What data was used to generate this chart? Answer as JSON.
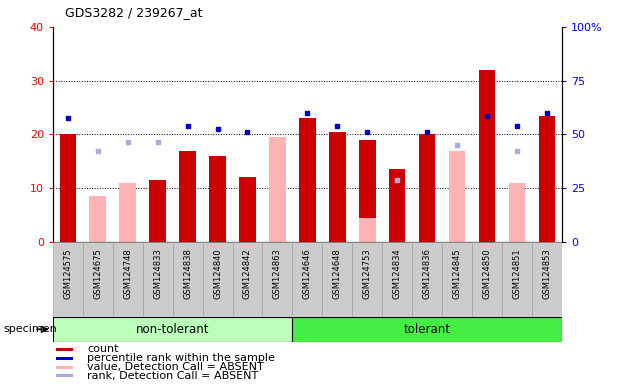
{
  "title": "GDS3282 / 239267_at",
  "samples": [
    "GSM124575",
    "GSM124675",
    "GSM124748",
    "GSM124833",
    "GSM124838",
    "GSM124840",
    "GSM124842",
    "GSM124863",
    "GSM124646",
    "GSM124648",
    "GSM124753",
    "GSM124834",
    "GSM124836",
    "GSM124845",
    "GSM124850",
    "GSM124851",
    "GSM124853"
  ],
  "n_nontol": 8,
  "n_tol": 9,
  "red_count": [
    20,
    0,
    0,
    11.5,
    17,
    16,
    12,
    0,
    23,
    20.5,
    19,
    13.5,
    20,
    0,
    32,
    0,
    23.5
  ],
  "pink_value_absent": [
    0,
    8.5,
    11,
    0,
    0,
    0,
    0,
    19.5,
    0,
    0,
    4.5,
    0,
    0,
    17,
    0,
    11,
    0
  ],
  "blue_rank": [
    23,
    0,
    0,
    0,
    21.5,
    21,
    20.5,
    0,
    24,
    21.5,
    20.5,
    0,
    20.5,
    0,
    23.5,
    21.5,
    24
  ],
  "lightblue_rank_absent": [
    0,
    17,
    18.5,
    18.5,
    0,
    0,
    0,
    0,
    0,
    0,
    0,
    11.5,
    0,
    18,
    0,
    17,
    0
  ],
  "ylim_left": [
    0,
    40
  ],
  "ylim_right": [
    0,
    100
  ],
  "yticks_left": [
    0,
    10,
    20,
    30,
    40
  ],
  "yticks_right": [
    0,
    25,
    50,
    75,
    100
  ],
  "ytick_right_labels": [
    "0",
    "25",
    "50",
    "75",
    "100%"
  ],
  "color_red": "#cc0000",
  "color_pink": "#ffb3b3",
  "color_blue": "#0000cc",
  "color_lightblue": "#aaaadd",
  "color_group_nontol": "#bbffbb",
  "color_group_tol": "#44ee44",
  "bar_width": 0.55,
  "legend_items": [
    [
      "#cc0000",
      "count"
    ],
    [
      "#0000cc",
      "percentile rank within the sample"
    ],
    [
      "#ffb3b3",
      "value, Detection Call = ABSENT"
    ],
    [
      "#aaaadd",
      "rank, Detection Call = ABSENT"
    ]
  ]
}
